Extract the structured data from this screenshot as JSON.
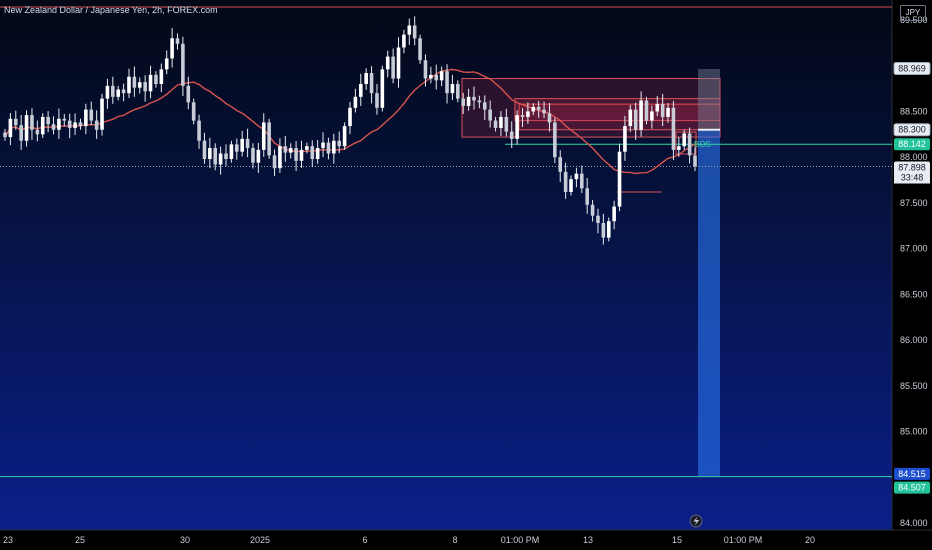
{
  "header": {
    "title": "New Zealand Dollar / Japanese Yen, 2h, FOREX.com",
    "currency": "JPY"
  },
  "chart_data": {
    "type": "candlestick",
    "title": "New Zealand Dollar / Japanese Yen, 2h, FOREX.com",
    "ylim": [
      84.0,
      89.5
    ],
    "y_ticks": [
      "89.500",
      "88.500",
      "88.000",
      "87.500",
      "87.000",
      "86.500",
      "86.000",
      "85.500",
      "85.000",
      "84.000"
    ],
    "x_ticks": [
      "23",
      "25",
      "30",
      "2025",
      "6",
      "8",
      "01:00 PM",
      "13",
      "15",
      "01:00 PM",
      "20"
    ],
    "price_labels": {
      "high_level": "88.969",
      "upper_zone": "88.300",
      "bos_level": "88.142",
      "last_price": "87.898",
      "countdown": "33:48",
      "target_level": "84.515",
      "target_level_low": "84.507"
    },
    "annotations": {
      "bos_label": "BOS"
    },
    "levels": {
      "top_line": 89.5,
      "bos": 88.142,
      "target": 84.507,
      "last": 87.898
    },
    "zones": [
      {
        "y_top": 88.86,
        "y_bottom": 88.22
      },
      {
        "y_top": 88.64,
        "y_bottom": 88.4
      },
      {
        "y_top": 88.58,
        "y_bottom": 88.3
      }
    ],
    "position_box": {
      "entry": 88.3,
      "stop": 88.969,
      "target": 84.515
    },
    "close_series": [
      88.22,
      88.42,
      88.35,
      88.18,
      88.46,
      88.3,
      88.25,
      88.44,
      88.36,
      88.3,
      88.42,
      88.4,
      88.32,
      88.38,
      88.34,
      88.52,
      88.4,
      88.3,
      88.64,
      88.78,
      88.66,
      88.74,
      88.7,
      88.88,
      88.76,
      88.82,
      88.72,
      88.9,
      88.8,
      88.96,
      89.08,
      89.3,
      89.24,
      88.78,
      88.6,
      88.4,
      88.18,
      87.98,
      88.1,
      87.92,
      88.04,
      87.98,
      88.14,
      88.06,
      88.2,
      88.1,
      87.94,
      88.08,
      88.38,
      88.02,
      87.88,
      88.12,
      88.05,
      88.1,
      87.96,
      88.08,
      88.12,
      87.98,
      88.1,
      88.16,
      88.04,
      88.18,
      88.12,
      88.34,
      88.54,
      88.66,
      88.8,
      88.92,
      88.7,
      88.54,
      88.96,
      89.1,
      88.86,
      89.2,
      89.34,
      89.44,
      89.3,
      89.06,
      88.86,
      88.9,
      88.84,
      88.94,
      88.7,
      88.8,
      88.64,
      88.56,
      88.66,
      88.62,
      88.6,
      88.52,
      88.4,
      88.32,
      88.44,
      88.28,
      88.2,
      88.46,
      88.44,
      88.5,
      88.55,
      88.52,
      88.48,
      88.38,
      88.0,
      87.84,
      87.62,
      87.76,
      87.82,
      87.66,
      87.48,
      87.36,
      87.28,
      87.12,
      87.3,
      87.46,
      88.06,
      88.34,
      88.52,
      88.3,
      88.62,
      88.4,
      88.5,
      88.58,
      88.44,
      88.54,
      88.08,
      88.12,
      88.26,
      88.02,
      87.9
    ]
  }
}
